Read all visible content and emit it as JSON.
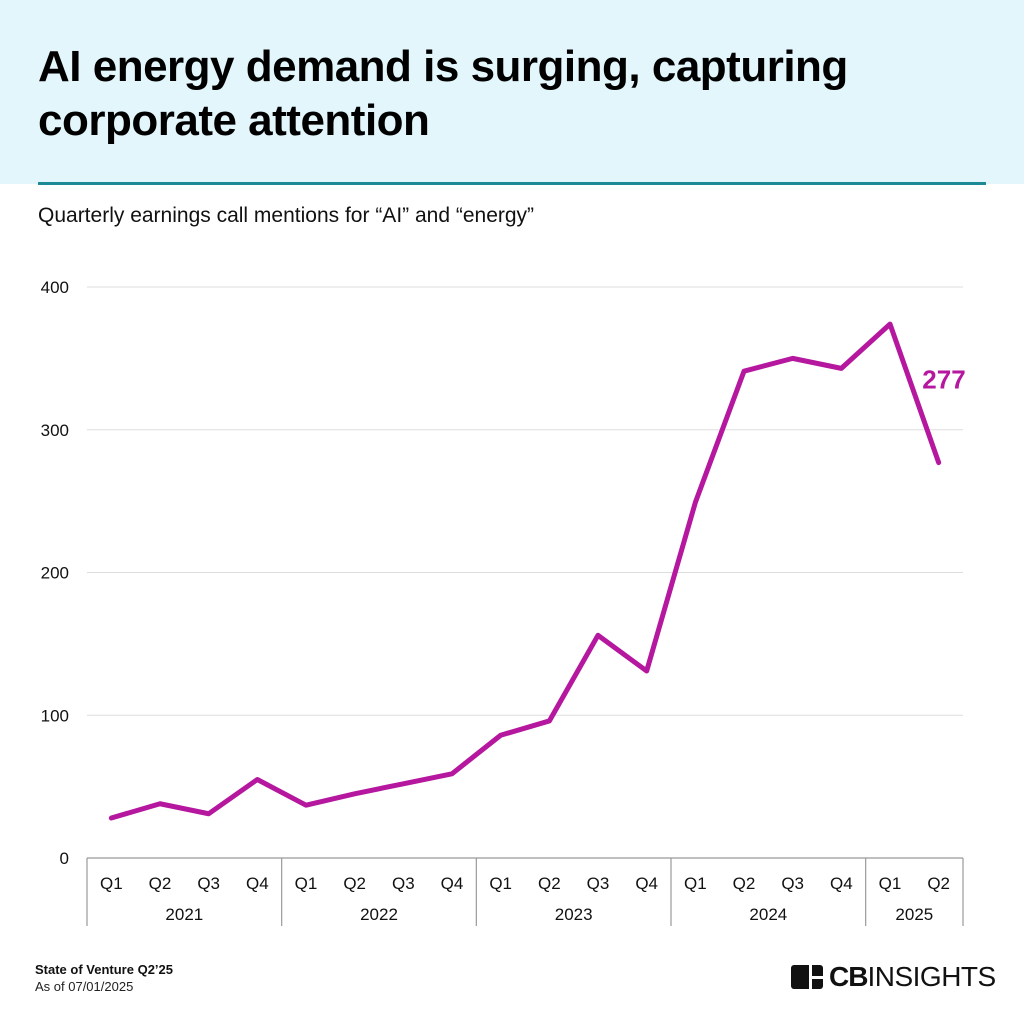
{
  "header": {
    "title": "AI energy demand is surging, capturing corporate attention",
    "subtitle": "Quarterly earnings call mentions for “AI” and “energy”"
  },
  "footer": {
    "report": "State of Venture Q2’25",
    "as_of": "As of 07/01/2025",
    "logo_bold": "CB",
    "logo_light": "INSIGHTS"
  },
  "colors": {
    "line": "#b5179e",
    "header_bg": "#e2f6fb",
    "divider": "#1d8a96",
    "grid": "#dddddd",
    "axis": "#999999"
  },
  "chart_data": {
    "type": "line",
    "title": "AI energy demand is surging, capturing corporate attention",
    "subtitle": "Quarterly earnings call mentions for “AI” and “energy”",
    "xlabel": "",
    "ylabel": "",
    "ylim": [
      0,
      400
    ],
    "yticks": [
      0,
      100,
      200,
      300,
      400
    ],
    "grid": true,
    "legend": "none",
    "categories": [
      "Q1",
      "Q2",
      "Q3",
      "Q4",
      "Q1",
      "Q2",
      "Q3",
      "Q4",
      "Q1",
      "Q2",
      "Q3",
      "Q4",
      "Q1",
      "Q2",
      "Q3",
      "Q4",
      "Q1",
      "Q2"
    ],
    "groups": [
      {
        "label": "2021",
        "count": 4
      },
      {
        "label": "2022",
        "count": 4
      },
      {
        "label": "2023",
        "count": 4
      },
      {
        "label": "2024",
        "count": 4
      },
      {
        "label": "2025",
        "count": 2
      }
    ],
    "series": [
      {
        "name": "Earnings call mentions",
        "values": [
          28,
          38,
          31,
          55,
          37,
          45,
          52,
          59,
          86,
          96,
          156,
          131,
          249,
          341,
          350,
          343,
          374,
          277
        ]
      }
    ],
    "annotations": [
      {
        "label": "277",
        "index": 17
      }
    ]
  }
}
